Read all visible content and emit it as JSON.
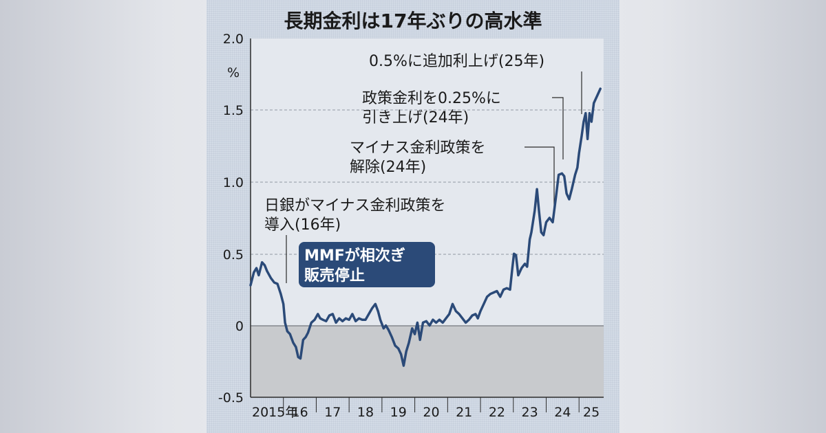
{
  "chart_data": {
    "type": "line",
    "title": "長期金利は17年ぶりの高水準",
    "ylabel": "%",
    "ylim": [
      -0.5,
      2.0
    ],
    "yticks": [
      "2.0",
      "1.5",
      "1.0",
      "0.5",
      "0",
      "-0.5"
    ],
    "xlim": [
      2015.0,
      2025.75
    ],
    "xticks": [
      {
        "label": "2015年",
        "x": 2015
      },
      {
        "label": "16",
        "x": 2016
      },
      {
        "label": "17",
        "x": 2017
      },
      {
        "label": "18",
        "x": 2018
      },
      {
        "label": "19",
        "x": 2019
      },
      {
        "label": "20",
        "x": 2020
      },
      {
        "label": "21",
        "x": 2021
      },
      {
        "label": "22",
        "x": 2022
      },
      {
        "label": "23",
        "x": 2023
      },
      {
        "label": "24",
        "x": 2024
      },
      {
        "label": "25",
        "x": 2025
      }
    ],
    "grid": "dashed horizontal at 0.5 intervals",
    "series": [
      {
        "color": "#2b4a78",
        "points": [
          [
            2015.0,
            0.28
          ],
          [
            2015.1,
            0.37
          ],
          [
            2015.18,
            0.4
          ],
          [
            2015.25,
            0.35
          ],
          [
            2015.35,
            0.44
          ],
          [
            2015.43,
            0.42
          ],
          [
            2015.5,
            0.38
          ],
          [
            2015.62,
            0.33
          ],
          [
            2015.72,
            0.3
          ],
          [
            2015.82,
            0.29
          ],
          [
            2015.92,
            0.22
          ],
          [
            2016.0,
            0.15
          ],
          [
            2016.05,
            0.02
          ],
          [
            2016.12,
            -0.04
          ],
          [
            2016.2,
            -0.06
          ],
          [
            2016.3,
            -0.12
          ],
          [
            2016.38,
            -0.15
          ],
          [
            2016.45,
            -0.22
          ],
          [
            2016.52,
            -0.23
          ],
          [
            2016.6,
            -0.1
          ],
          [
            2016.68,
            -0.08
          ],
          [
            2016.75,
            -0.05
          ],
          [
            2016.85,
            0.02
          ],
          [
            2016.95,
            0.04
          ],
          [
            2017.05,
            0.08
          ],
          [
            2017.12,
            0.05
          ],
          [
            2017.2,
            0.04
          ],
          [
            2017.3,
            0.03
          ],
          [
            2017.4,
            0.07
          ],
          [
            2017.5,
            0.08
          ],
          [
            2017.6,
            0.02
          ],
          [
            2017.7,
            0.05
          ],
          [
            2017.8,
            0.03
          ],
          [
            2017.9,
            0.05
          ],
          [
            2018.0,
            0.04
          ],
          [
            2018.1,
            0.08
          ],
          [
            2018.2,
            0.03
          ],
          [
            2018.3,
            0.05
          ],
          [
            2018.4,
            0.04
          ],
          [
            2018.5,
            0.04
          ],
          [
            2018.6,
            0.08
          ],
          [
            2018.7,
            0.12
          ],
          [
            2018.8,
            0.15
          ],
          [
            2018.88,
            0.1
          ],
          [
            2018.95,
            0.04
          ],
          [
            2019.05,
            -0.02
          ],
          [
            2019.12,
            0.0
          ],
          [
            2019.2,
            -0.03
          ],
          [
            2019.3,
            -0.08
          ],
          [
            2019.4,
            -0.14
          ],
          [
            2019.5,
            -0.16
          ],
          [
            2019.58,
            -0.2
          ],
          [
            2019.66,
            -0.28
          ],
          [
            2019.74,
            -0.18
          ],
          [
            2019.82,
            -0.12
          ],
          [
            2019.92,
            -0.02
          ],
          [
            2020.0,
            -0.06
          ],
          [
            2020.08,
            0.02
          ],
          [
            2020.16,
            -0.1
          ],
          [
            2020.25,
            0.02
          ],
          [
            2020.35,
            0.03
          ],
          [
            2020.45,
            0.0
          ],
          [
            2020.55,
            0.04
          ],
          [
            2020.65,
            0.02
          ],
          [
            2020.75,
            0.04
          ],
          [
            2020.85,
            0.02
          ],
          [
            2020.95,
            0.05
          ],
          [
            2021.05,
            0.08
          ],
          [
            2021.15,
            0.15
          ],
          [
            2021.25,
            0.1
          ],
          [
            2021.35,
            0.08
          ],
          [
            2021.45,
            0.05
          ],
          [
            2021.55,
            0.02
          ],
          [
            2021.65,
            0.04
          ],
          [
            2021.75,
            0.07
          ],
          [
            2021.85,
            0.08
          ],
          [
            2021.92,
            0.05
          ],
          [
            2022.0,
            0.1
          ],
          [
            2022.1,
            0.15
          ],
          [
            2022.2,
            0.2
          ],
          [
            2022.3,
            0.22
          ],
          [
            2022.4,
            0.23
          ],
          [
            2022.5,
            0.24
          ],
          [
            2022.6,
            0.2
          ],
          [
            2022.7,
            0.25
          ],
          [
            2022.8,
            0.26
          ],
          [
            2022.9,
            0.25
          ],
          [
            2022.97,
            0.4
          ],
          [
            2023.02,
            0.5
          ],
          [
            2023.08,
            0.49
          ],
          [
            2023.15,
            0.35
          ],
          [
            2023.25,
            0.4
          ],
          [
            2023.35,
            0.43
          ],
          [
            2023.42,
            0.41
          ],
          [
            2023.5,
            0.6
          ],
          [
            2023.55,
            0.65
          ],
          [
            2023.65,
            0.8
          ],
          [
            2023.72,
            0.95
          ],
          [
            2023.78,
            0.8
          ],
          [
            2023.85,
            0.65
          ],
          [
            2023.92,
            0.63
          ],
          [
            2024.0,
            0.72
          ],
          [
            2024.1,
            0.75
          ],
          [
            2024.2,
            0.72
          ],
          [
            2024.3,
            0.9
          ],
          [
            2024.38,
            1.05
          ],
          [
            2024.48,
            1.06
          ],
          [
            2024.55,
            1.04
          ],
          [
            2024.62,
            0.92
          ],
          [
            2024.7,
            0.88
          ],
          [
            2024.78,
            0.95
          ],
          [
            2024.88,
            1.05
          ],
          [
            2024.95,
            1.1
          ],
          [
            2025.0,
            1.2
          ],
          [
            2025.08,
            1.32
          ],
          [
            2025.14,
            1.42
          ],
          [
            2025.2,
            1.48
          ],
          [
            2025.26,
            1.3
          ],
          [
            2025.32,
            1.48
          ],
          [
            2025.38,
            1.42
          ],
          [
            2025.45,
            1.55
          ],
          [
            2025.55,
            1.6
          ],
          [
            2025.65,
            1.65
          ]
        ]
      }
    ],
    "annotations": {
      "a1_line1": "0.5%に追加利上げ(25年)",
      "a2_line1": "政策金利を0.25%に",
      "a2_line2": "引き上げ(24年)",
      "a3_line1": "マイナス金利政策を",
      "a3_line2": "解除(24年)",
      "a4_line1": "日銀がマイナス金利政策を",
      "a4_line2": "導入(16年)",
      "mmf_line1": "MMFが相次ぎ",
      "mmf_line2": "販売停止"
    }
  },
  "colors": {
    "panel": "#d3dbe6",
    "plot": "#e4e8ee",
    "negative_zone": "#c8cacd",
    "line": "#2b4a78",
    "badge": "#2b4a78"
  }
}
